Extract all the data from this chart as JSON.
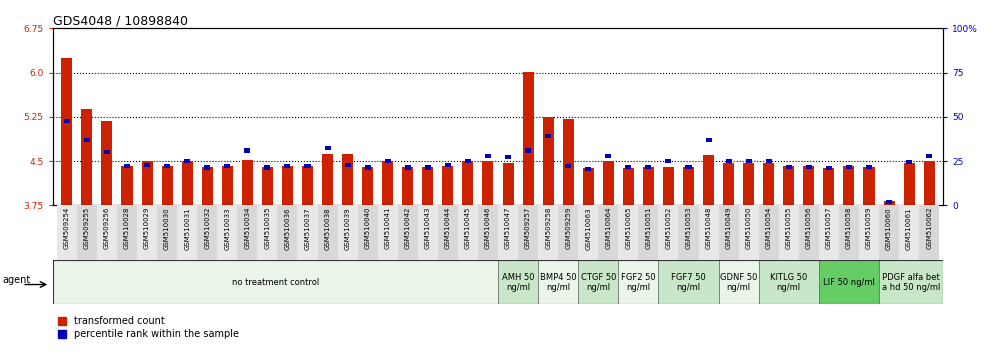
{
  "title": "GDS4048 / 10898840",
  "samples": [
    "GSM509254",
    "GSM509255",
    "GSM509256",
    "GSM510028",
    "GSM510029",
    "GSM510030",
    "GSM510031",
    "GSM510032",
    "GSM510033",
    "GSM510034",
    "GSM510035",
    "GSM510036",
    "GSM510037",
    "GSM510038",
    "GSM510039",
    "GSM510040",
    "GSM510041",
    "GSM510042",
    "GSM510043",
    "GSM510044",
    "GSM510045",
    "GSM510046",
    "GSM510047",
    "GSM509257",
    "GSM509258",
    "GSM509259",
    "GSM510063",
    "GSM510064",
    "GSM510065",
    "GSM510051",
    "GSM510052",
    "GSM510053",
    "GSM510048",
    "GSM510049",
    "GSM510050",
    "GSM510054",
    "GSM510055",
    "GSM510056",
    "GSM510057",
    "GSM510058",
    "GSM510059",
    "GSM510060",
    "GSM510061",
    "GSM510062"
  ],
  "red_values": [
    6.25,
    5.38,
    5.18,
    4.42,
    4.5,
    4.42,
    4.5,
    4.4,
    4.42,
    4.52,
    4.4,
    4.42,
    4.42,
    4.62,
    4.62,
    4.4,
    4.5,
    4.4,
    4.4,
    4.42,
    4.5,
    4.5,
    4.46,
    6.01,
    5.25,
    5.21,
    4.38,
    4.5,
    4.38,
    4.4,
    4.4,
    4.4,
    4.6,
    4.46,
    4.46,
    4.46,
    4.42,
    4.42,
    4.38,
    4.42,
    4.4,
    3.82,
    4.46,
    4.5
  ],
  "blue_values": [
    5.18,
    4.85,
    4.65,
    4.42,
    4.44,
    4.41,
    4.5,
    4.39,
    4.41,
    4.68,
    4.39,
    4.41,
    4.41,
    4.72,
    4.44,
    4.39,
    4.5,
    4.39,
    4.39,
    4.44,
    4.5,
    4.58,
    4.57,
    4.68,
    4.92,
    4.41,
    4.37,
    4.58,
    4.4,
    4.4,
    4.5,
    4.4,
    4.85,
    4.5,
    4.5,
    4.5,
    4.4,
    4.4,
    4.38,
    4.4,
    4.4,
    3.81,
    4.48,
    4.58
  ],
  "ylim_left": [
    3.75,
    6.75
  ],
  "ylim_right": [
    0,
    100
  ],
  "yticks_left": [
    3.75,
    4.5,
    5.25,
    6.0,
    6.75
  ],
  "yticks_right": [
    0,
    25,
    50,
    75,
    100
  ],
  "hlines": [
    4.5,
    5.25,
    6.0
  ],
  "agent_groups": [
    {
      "label": "no treatment control",
      "start": 0,
      "end": 22,
      "color": "#e8f5e8"
    },
    {
      "label": "AMH 50\nng/ml",
      "start": 22,
      "end": 24,
      "color": "#c8e6c8"
    },
    {
      "label": "BMP4 50\nng/ml",
      "start": 24,
      "end": 26,
      "color": "#e8f5e8"
    },
    {
      "label": "CTGF 50\nng/ml",
      "start": 26,
      "end": 28,
      "color": "#c8e6c8"
    },
    {
      "label": "FGF2 50\nng/ml",
      "start": 28,
      "end": 30,
      "color": "#e8f5e8"
    },
    {
      "label": "FGF7 50\nng/ml",
      "start": 30,
      "end": 33,
      "color": "#c8e6c8"
    },
    {
      "label": "GDNF 50\nng/ml",
      "start": 33,
      "end": 35,
      "color": "#e8f5e8"
    },
    {
      "label": "KITLG 50\nng/ml",
      "start": 35,
      "end": 38,
      "color": "#c8e6c8"
    },
    {
      "label": "LIF 50 ng/ml",
      "start": 38,
      "end": 41,
      "color": "#66cc66"
    },
    {
      "label": "PDGF alfa bet\na hd 50 ng/ml",
      "start": 41,
      "end": 44,
      "color": "#c8e6c8"
    }
  ],
  "red_color": "#cc2200",
  "blue_color": "#0000bb",
  "title_fontsize": 9,
  "tick_fontsize": 6.5,
  "label_fontsize": 5.5
}
